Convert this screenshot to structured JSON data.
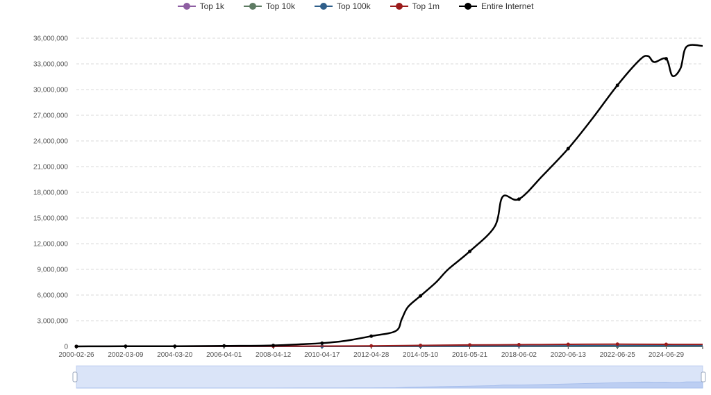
{
  "legend": [
    {
      "name": "Top 1k",
      "color": "#8e5ea2"
    },
    {
      "name": "Top 10k",
      "color": "#5e7b63"
    },
    {
      "name": "Top 100k",
      "color": "#2f5f8a"
    },
    {
      "name": "Top 1m",
      "color": "#9b1b1b"
    },
    {
      "name": "Entire Internet",
      "color": "#000000"
    }
  ],
  "chart_data": {
    "type": "line",
    "x_ticks": [
      "2000-02-26",
      "2002-03-09",
      "2004-03-20",
      "2006-04-01",
      "2008-04-12",
      "2010-04-17",
      "2012-04-28",
      "2014-05-10",
      "2016-05-21",
      "2018-06-02",
      "2020-06-13",
      "2022-06-25",
      "2024-06-29"
    ],
    "y_ticks": [
      "0",
      "3,000,000",
      "6,000,000",
      "9,000,000",
      "12,000,000",
      "15,000,000",
      "18,000,000",
      "21,000,000",
      "24,000,000",
      "27,000,000",
      "30,000,000",
      "33,000,000",
      "36,000,000"
    ],
    "ylim": [
      0,
      36000000
    ],
    "grid": true,
    "legend_position": "top-center",
    "x_start": "2000-02-26",
    "x_end": "2025-12-31",
    "series": [
      {
        "name": "Entire Internet",
        "color": "#000000",
        "points": [
          [
            "2000-02-26",
            0
          ],
          [
            "2002-03-09",
            20000
          ],
          [
            "2004-03-20",
            20000
          ],
          [
            "2006-04-01",
            60000
          ],
          [
            "2008-04-12",
            110000
          ],
          [
            "2009-06-01",
            250000
          ],
          [
            "2010-04-17",
            380000
          ],
          [
            "2011-04-01",
            650000
          ],
          [
            "2012-04-28",
            1200000
          ],
          [
            "2013-05-01",
            1800000
          ],
          [
            "2013-08-01",
            3200000
          ],
          [
            "2013-11-01",
            4600000
          ],
          [
            "2014-05-10",
            5900000
          ],
          [
            "2015-01-01",
            7500000
          ],
          [
            "2015-07-01",
            9000000
          ],
          [
            "2016-05-21",
            11100000
          ],
          [
            "2017-06-01",
            14000000
          ],
          [
            "2017-10-01",
            17500000
          ],
          [
            "2018-06-02",
            17200000
          ],
          [
            "2019-06-01",
            20000000
          ],
          [
            "2020-06-13",
            23100000
          ],
          [
            "2021-06-01",
            26500000
          ],
          [
            "2022-06-25",
            30500000
          ],
          [
            "2023-06-01",
            33500000
          ],
          [
            "2023-10-01",
            33900000
          ],
          [
            "2024-01-01",
            33200000
          ],
          [
            "2024-06-29",
            33600000
          ],
          [
            "2024-10-01",
            31600000
          ],
          [
            "2025-02-01",
            32500000
          ],
          [
            "2025-05-01",
            35000000
          ],
          [
            "2025-12-31",
            35100000
          ]
        ]
      },
      {
        "name": "Top 1m",
        "color": "#9b1b1b",
        "points": [
          [
            "2000-02-26",
            0
          ],
          [
            "2008-04-12",
            20000
          ],
          [
            "2012-04-28",
            60000
          ],
          [
            "2014-05-10",
            120000
          ],
          [
            "2016-05-21",
            170000
          ],
          [
            "2018-06-02",
            200000
          ],
          [
            "2020-06-13",
            240000
          ],
          [
            "2022-06-25",
            260000
          ],
          [
            "2024-06-29",
            240000
          ],
          [
            "2025-12-31",
            230000
          ]
        ]
      },
      {
        "name": "Top 100k",
        "color": "#2f5f8a",
        "points": [
          [
            "2000-02-26",
            0
          ],
          [
            "2010-04-17",
            5000
          ],
          [
            "2014-05-10",
            30000
          ],
          [
            "2018-06-02",
            60000
          ],
          [
            "2022-06-25",
            90000
          ],
          [
            "2025-12-31",
            80000
          ]
        ]
      },
      {
        "name": "Top 10k",
        "color": "#5e7b63",
        "points": [
          [
            "2000-02-26",
            0
          ],
          [
            "2014-05-10",
            5000
          ],
          [
            "2022-06-25",
            10000
          ],
          [
            "2025-12-31",
            10000
          ]
        ]
      },
      {
        "name": "Top 1k",
        "color": "#8e5ea2",
        "points": [
          [
            "2000-02-26",
            0
          ],
          [
            "2025-12-31",
            1000
          ]
        ]
      }
    ]
  }
}
